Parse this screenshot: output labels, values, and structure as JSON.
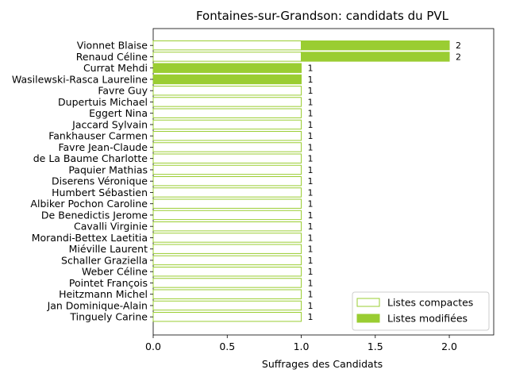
{
  "chart_data": {
    "type": "bar",
    "orientation": "horizontal",
    "stacked": true,
    "title": "Fontaines-sur-Grandson: candidats du PVL",
    "xlabel": "Suffrages des Candidats",
    "ylabel": "",
    "xlim": [
      0,
      2.3
    ],
    "xticks": [
      0.0,
      0.5,
      1.0,
      1.5,
      2.0
    ],
    "xtick_labels": [
      "0.0",
      "0.5",
      "1.0",
      "1.5",
      "2.0"
    ],
    "categories": [
      "Vionnet Blaise",
      "Renaud Céline",
      "Currat Mehdi",
      "Wasilewski-Rasca Laureline",
      "Favre Guy",
      "Dupertuis Michael",
      "Eggert Nina",
      "Jaccard Sylvain",
      "Fankhauser Carmen",
      "Favre Jean-Claude",
      "de La Baume Charlotte",
      "Paquier Mathias",
      "Diserens Véronique",
      "Humbert Sébastien",
      "Albiker Pochon Caroline",
      "De Benedictis Jerome",
      "Cavalli Virginie",
      "Morandi-Bettex Laetitia",
      "Miéville Laurent",
      "Schaller Graziella",
      "Weber Céline",
      "Pointet François",
      "Heitzmann Michel",
      "Jan Dominique-Alain",
      "Tinguely Carine"
    ],
    "series": [
      {
        "name": "Listes compactes",
        "style": "outline",
        "color": "#9acd32",
        "values": [
          1,
          1,
          0,
          0,
          1,
          1,
          1,
          1,
          1,
          1,
          1,
          1,
          1,
          1,
          1,
          1,
          1,
          1,
          1,
          1,
          1,
          1,
          1,
          1,
          1
        ]
      },
      {
        "name": "Listes modifiées",
        "style": "filled",
        "color": "#9acd32",
        "values": [
          1,
          1,
          1,
          1,
          0,
          0,
          0,
          0,
          0,
          0,
          0,
          0,
          0,
          0,
          0,
          0,
          0,
          0,
          0,
          0,
          0,
          0,
          0,
          0,
          0
        ]
      }
    ],
    "totals": [
      2,
      2,
      1,
      1,
      1,
      1,
      1,
      1,
      1,
      1,
      1,
      1,
      1,
      1,
      1,
      1,
      1,
      1,
      1,
      1,
      1,
      1,
      1,
      1,
      1
    ],
    "legend_position": "lower-right",
    "grid": false
  }
}
